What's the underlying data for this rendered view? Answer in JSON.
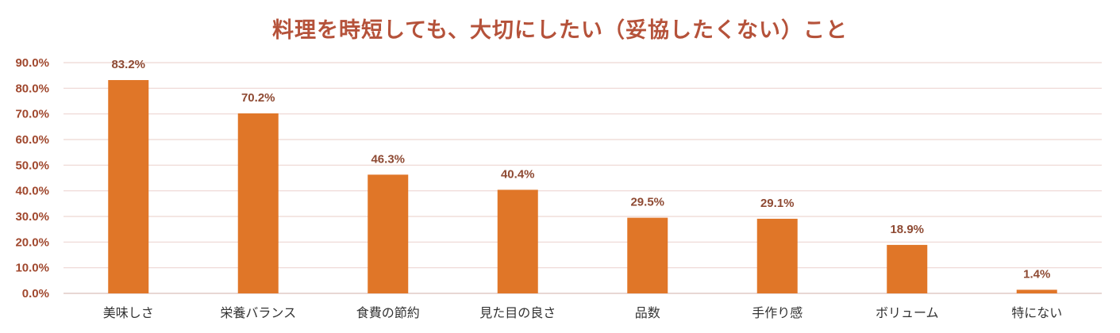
{
  "colors": {
    "bar": "#E07628",
    "title": "#B5523A",
    "tick_y": "#A0482E",
    "data_label": "#8E4A33",
    "x_label": "#333333",
    "grid": "#EED6D2"
  },
  "chart_data": {
    "type": "bar",
    "title": "料理を時短しても、大切にしたい（妥協したくない）こと",
    "categories": [
      "美味しさ",
      "栄養バランス",
      "食費の節約",
      "見た目の良さ",
      "品数",
      "手作り感",
      "ボリューム",
      "特にない"
    ],
    "values": [
      83.2,
      70.2,
      46.3,
      40.4,
      29.5,
      29.1,
      18.9,
      1.4
    ],
    "data_labels": [
      "83.2%",
      "70.2%",
      "46.3%",
      "40.4%",
      "29.5%",
      "29.1%",
      "18.9%",
      "1.4%"
    ],
    "ylim": [
      0,
      90
    ],
    "yticks": [
      0,
      10,
      20,
      30,
      40,
      50,
      60,
      70,
      80,
      90
    ],
    "ytick_labels": [
      "0.0%",
      "10.0%",
      "20.0%",
      "30.0%",
      "40.0%",
      "50.0%",
      "60.0%",
      "70.0%",
      "80.0%",
      "90.0%"
    ],
    "grid": true,
    "legend": false
  }
}
